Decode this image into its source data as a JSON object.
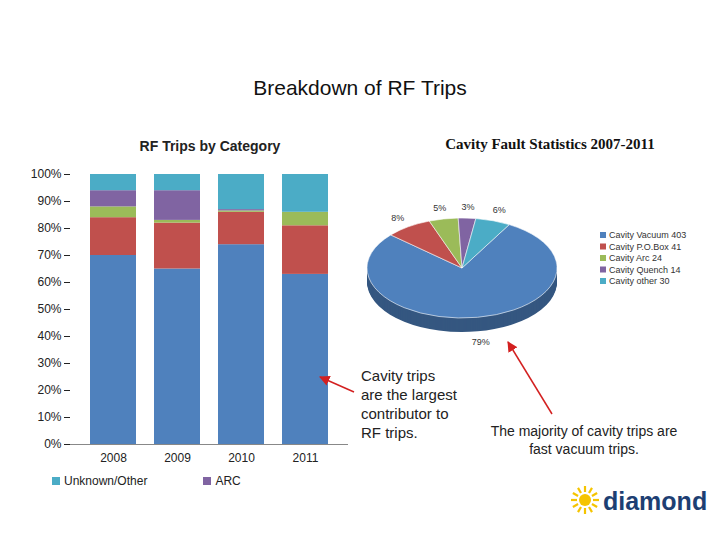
{
  "page": {
    "title": "Breakdown of RF Trips",
    "annotations": [
      "Cavity trips are the largest contributor to RF trips.",
      "The majority of cavity trips are fast vacuum trips."
    ],
    "logo": "diamond"
  },
  "chart_data": [
    {
      "type": "bar",
      "title": "RF Trips by Category",
      "stacked": true,
      "categories": [
        "2008",
        "2009",
        "2010",
        "2011"
      ],
      "series": [
        {
          "name": null,
          "color": "#4f81bd",
          "values": [
            70,
            65,
            74,
            63
          ]
        },
        {
          "name": null,
          "color": "#c0504d",
          "values": [
            14,
            17,
            12,
            18
          ]
        },
        {
          "name": null,
          "color": "#9bbb59",
          "values": [
            4,
            1,
            0.5,
            5
          ]
        },
        {
          "name": "ARC",
          "color": "#8064a2",
          "values": [
            6,
            11,
            0.5,
            0
          ]
        },
        {
          "name": "Unknown/Other",
          "color": "#4bacc6",
          "values": [
            6,
            6,
            13,
            14
          ]
        }
      ],
      "ylim": [
        0,
        100
      ],
      "yticks": [
        {
          "value": 0,
          "label": "0%"
        },
        {
          "value": 10,
          "label": "10%"
        },
        {
          "value": 20,
          "label": "20%"
        },
        {
          "value": 30,
          "label": "30%"
        },
        {
          "value": 40,
          "label": "40%"
        },
        {
          "value": 50,
          "label": "50%"
        },
        {
          "value": 60,
          "label": "60%"
        },
        {
          "value": 70,
          "label": "70%"
        },
        {
          "value": 80,
          "label": "80%"
        },
        {
          "value": 90,
          "label": "90%"
        },
        {
          "value": 100,
          "label": "100%"
        }
      ],
      "grid": false,
      "legend": "bottom"
    },
    {
      "type": "pie",
      "title": "Cavity Fault Statistics 2007-2011",
      "categories": [
        "Cavity Vacuum 403",
        "Cavity P.O.Box 41",
        "Cavity Arc 24",
        "Cavity Quench 14",
        "Cavity other 30"
      ],
      "values": [
        79,
        8,
        5,
        3,
        6
      ],
      "value_labels": [
        "79%",
        "8%",
        "5%",
        "3%",
        "6%"
      ],
      "colors": [
        "#4f81bd",
        "#c0504d",
        "#9bbb59",
        "#8064a2",
        "#4bacc6"
      ],
      "data_labels": true,
      "legend": "right"
    }
  ]
}
